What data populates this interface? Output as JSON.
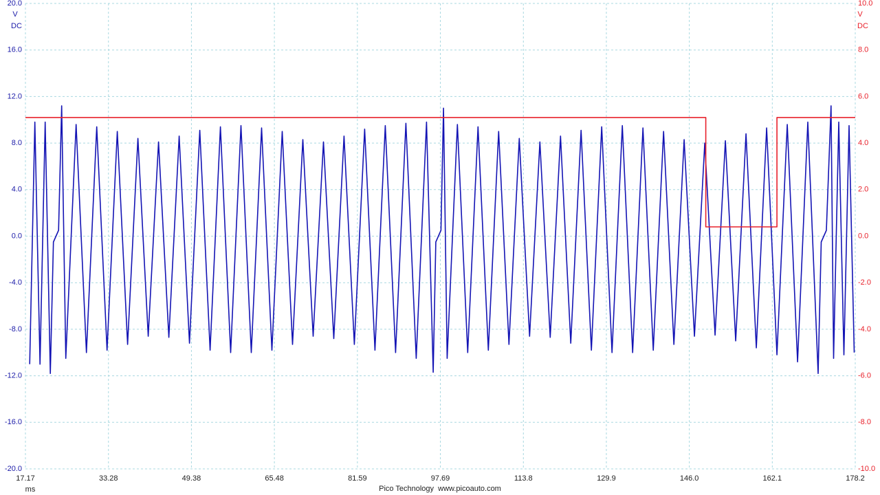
{
  "chart_data": {
    "type": "line",
    "ylabel": [
      "V",
      "DC"
    ],
    "y2label": [
      "V",
      "DC"
    ],
    "xlabel": "ms",
    "footer": "Pico Technology  www.picoauto.com",
    "grid": true,
    "xlim": [
      17.17,
      178.2
    ],
    "xticks": [
      17.17,
      33.28,
      49.38,
      65.48,
      81.59,
      97.69,
      113.8,
      129.9,
      {
        "value": 146.0,
        "label": "146.0"
      },
      162.1,
      178.2
    ],
    "ylim": [
      -20,
      20
    ],
    "yticks": [
      {
        "value": 20,
        "label": "20.0"
      },
      {
        "value": 16,
        "label": "16.0"
      },
      {
        "value": 12,
        "label": "12.0"
      },
      {
        "value": 8,
        "label": "8.0"
      },
      {
        "value": 4,
        "label": "4.0"
      },
      {
        "value": 0,
        "label": "0.0"
      },
      {
        "value": -4,
        "label": "-4.0"
      },
      {
        "value": -8,
        "label": "-8.0"
      },
      {
        "value": -12,
        "label": "-12.0"
      },
      {
        "value": -16,
        "label": "-16.0"
      },
      {
        "value": -20,
        "label": "-20.0"
      }
    ],
    "y2lim": [
      -10,
      10
    ],
    "y2ticks": [
      {
        "value": 10,
        "label": "10.0"
      },
      {
        "value": 8,
        "label": "8.0"
      },
      {
        "value": 6,
        "label": "6.0"
      },
      {
        "value": 4,
        "label": "4.0"
      },
      {
        "value": 2,
        "label": "2.0"
      },
      {
        "value": 0,
        "label": "0.0"
      },
      {
        "value": -2,
        "label": "-2.0"
      },
      {
        "value": -4,
        "label": "-4.0"
      },
      {
        "value": -6,
        "label": "-6.0"
      },
      {
        "value": -8,
        "label": "-8.0"
      },
      {
        "value": -10,
        "label": "-10.0"
      }
    ],
    "ytick_color": "#1a1aa8",
    "y2tick_color": "#e8202a",
    "series": [
      {
        "color": "#1414b4",
        "axis": "y",
        "x": [
          18,
          19,
          20,
          21,
          22,
          22.6,
          23.6,
          24.2,
          25,
          27,
          29,
          31,
          33,
          35,
          37,
          39,
          41,
          43,
          45,
          47,
          49,
          51,
          53,
          55,
          57,
          59,
          61,
          63,
          65,
          67,
          69,
          71,
          73,
          75,
          77,
          79,
          81,
          83,
          85,
          87,
          89,
          91,
          93,
          95,
          96.3,
          96.8,
          97.8,
          98.3,
          99,
          101,
          103,
          105,
          107,
          109,
          111,
          113,
          115,
          117,
          119,
          121,
          123,
          125,
          127,
          129,
          131,
          133,
          135,
          137,
          139,
          141,
          143,
          145,
          147,
          149,
          151,
          153,
          155,
          157,
          159,
          161,
          163,
          165,
          167,
          169,
          171,
          171.6,
          172.6,
          173.5,
          174,
          175,
          176,
          177,
          178
        ],
        "values": [
          -11,
          9.8,
          -11,
          9.8,
          -11.8,
          -0.5,
          0.5,
          11.2,
          -10.5,
          9.6,
          -10,
          9.4,
          -9.8,
          9,
          -9.3,
          8.4,
          -8.6,
          8.1,
          -8.7,
          8.6,
          -9.2,
          9.1,
          -9.8,
          9.4,
          -10,
          9.5,
          -10,
          9.3,
          -9.8,
          9,
          -9.3,
          8.3,
          -8.6,
          8.1,
          -8.8,
          8.6,
          -9.3,
          9.2,
          -9.8,
          9.5,
          -10,
          9.7,
          -10.5,
          9.8,
          -11.7,
          -0.5,
          0.5,
          11,
          -10.5,
          9.6,
          -10,
          9.4,
          -9.8,
          9,
          -9.3,
          8.4,
          -8.6,
          8.1,
          -8.7,
          8.6,
          -9.2,
          9.1,
          -9.8,
          9.4,
          -10,
          9.5,
          -10,
          9.3,
          -9.8,
          9,
          -9.3,
          8.3,
          -8.6,
          8,
          -8.5,
          8.2,
          -9,
          8.8,
          -9.6,
          9.3,
          -10.2,
          9.6,
          -10.8,
          9.8,
          -11.8,
          -0.5,
          0.5,
          11.2,
          -10.5,
          9.8,
          -10.2,
          9.5,
          -10
        ]
      },
      {
        "color": "#e8202a",
        "axis": "y2",
        "x": [
          17.17,
          149.2,
          149.2,
          163,
          163,
          178.2
        ],
        "values": [
          5.1,
          5.1,
          0.4,
          0.4,
          5.1,
          5.1
        ]
      }
    ]
  }
}
